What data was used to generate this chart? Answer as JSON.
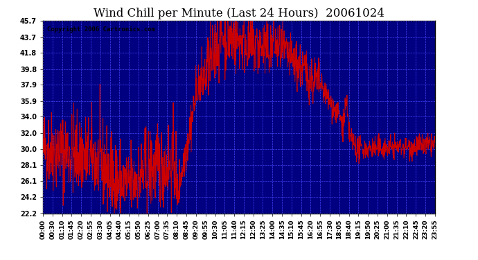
{
  "title": "Wind Chill per Minute (Last 24 Hours)  20061024",
  "copyright": "Copyright 2006 Cartronics.com",
  "yticks": [
    22.2,
    24.2,
    26.1,
    28.1,
    30.0,
    32.0,
    34.0,
    35.9,
    37.9,
    39.8,
    41.8,
    43.7,
    45.7
  ],
  "ymin": 22.2,
  "ymax": 45.7,
  "line_color": "#cc0000",
  "bg_color": "#000080",
  "plot_bg_color": "#000080",
  "outer_bg_color": "#ffffff",
  "grid_color": "#4444ff",
  "title_color": "#000000",
  "xtick_labels": [
    "00:00",
    "00:30",
    "01:10",
    "01:45",
    "02:20",
    "02:55",
    "03:30",
    "04:05",
    "04:40",
    "05:15",
    "05:50",
    "06:25",
    "07:00",
    "07:35",
    "08:10",
    "08:45",
    "09:20",
    "09:55",
    "10:30",
    "11:05",
    "11:40",
    "12:15",
    "12:50",
    "13:25",
    "14:00",
    "14:35",
    "15:10",
    "15:45",
    "16:20",
    "16:55",
    "17:30",
    "18:05",
    "18:40",
    "19:15",
    "19:50",
    "20:25",
    "21:00",
    "21:35",
    "22:10",
    "22:45",
    "23:20",
    "23:55"
  ],
  "n_points": 1440
}
